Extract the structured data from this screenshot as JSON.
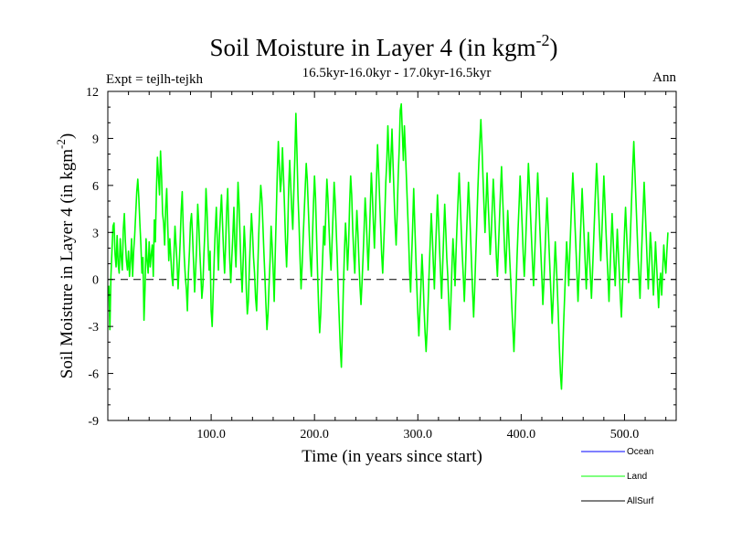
{
  "chart_data": {
    "type": "line",
    "title": "Soil Moisture in Layer 4 (in kgm",
    "title_sup": "-2",
    "title_close": ")",
    "subtitle": "16.5kyr-16.0kyr - 17.0kyr-16.5kyr",
    "expt_label": "Expt = tejlh-tejkh",
    "season_label": "Ann",
    "xlabel": "Time (in years since start)",
    "ylabel": "Soil Moisture in Layer 4 (in kgm",
    "ylabel_sup": "-2",
    "ylabel_close": ")",
    "xlim": [
      0,
      550
    ],
    "ylim": [
      -9,
      12
    ],
    "x_ticks": [
      100,
      200,
      300,
      400,
      500
    ],
    "x_tick_labels": [
      "100.0",
      "200.0",
      "300.0",
      "400.0",
      "500.0"
    ],
    "y_ticks": [
      -9,
      -6,
      -3,
      0,
      3,
      6,
      9,
      12
    ],
    "y_tick_labels": [
      "-9",
      "-6",
      "-3",
      "0",
      "3",
      "6",
      "9",
      "12"
    ],
    "zero_line": "dashed",
    "legend_position": "bottom-right",
    "colors": {
      "ocean": "#0000ff",
      "land": "#00ff00",
      "allsurf": "#000000"
    },
    "series": [
      {
        "name": "Ocean",
        "values": []
      },
      {
        "name": "AllSurf",
        "values": []
      },
      {
        "name": "Land",
        "x_start": 1,
        "x_step": 1,
        "values": [
          -0.4,
          -3.2,
          0.2,
          1.8,
          3.4,
          3.6,
          1.6,
          0.8,
          2.8,
          1.0,
          0.4,
          2.6,
          1.4,
          0.6,
          3.2,
          4.2,
          2.4,
          1.2,
          0.6,
          1.8,
          0.2,
          1.2,
          2.6,
          0.2,
          1.8,
          2.8,
          4.2,
          5.6,
          6.4,
          5.2,
          3.6,
          2.2,
          0.4,
          1.4,
          -2.6,
          -0.6,
          2.6,
          1.2,
          0.4,
          2.4,
          0.8,
          1.6,
          2.2,
          0.2,
          3.8,
          2.4,
          5.6,
          7.8,
          6.6,
          5.4,
          8.2,
          6.6,
          4.2,
          3.6,
          2.2,
          4.6,
          5.8,
          3.4,
          1.2,
          2.6,
          1.4,
          0.2,
          -0.4,
          1.6,
          3.4,
          2.2,
          1.0,
          -0.6,
          0.8,
          2.4,
          4.4,
          5.6,
          3.2,
          1.4,
          0.2,
          -0.6,
          -2.0,
          0.4,
          1.8,
          3.6,
          4.2,
          2.8,
          1.0,
          -0.8,
          0.6,
          2.2,
          4.8,
          3.6,
          1.8,
          0.4,
          -1.2,
          -0.4,
          1.6,
          3.2,
          5.8,
          4.4,
          2.2,
          0.6,
          1.8,
          -2.0,
          -3.0,
          -0.8,
          1.4,
          3.2,
          4.6,
          2.4,
          0.6,
          2.8,
          4.2,
          5.4,
          3.6,
          1.8,
          0.4,
          2.2,
          4.4,
          5.8,
          3.4,
          1.2,
          -0.2,
          1.4,
          2.8,
          4.6,
          2.2,
          0.8,
          3.6,
          6.2,
          4.8,
          2.6,
          0.6,
          -0.8,
          1.2,
          3.4,
          2.0,
          -0.6,
          -2.2,
          -1.4,
          0.8,
          2.6,
          4.2,
          3.0,
          1.4,
          0.4,
          -1.2,
          -2.0,
          0.4,
          2.8,
          4.6,
          6.0,
          5.2,
          3.6,
          1.8,
          0.2,
          -1.6,
          -3.2,
          -2.2,
          -0.4,
          1.2,
          3.4,
          2.2,
          0.6,
          -1.4,
          1.6,
          4.2,
          6.8,
          8.8,
          7.2,
          5.6,
          6.4,
          8.4,
          6.6,
          4.6,
          2.4,
          0.8,
          2.8,
          5.8,
          7.6,
          6.0,
          4.4,
          3.2,
          5.6,
          7.8,
          10.6,
          8.2,
          5.4,
          3.6,
          1.4,
          -0.6,
          0.8,
          2.6,
          4.2,
          5.8,
          7.4,
          6.4,
          4.6,
          2.8,
          1.2,
          0.2,
          2.6,
          4.8,
          6.6,
          5.2,
          2.8,
          0.4,
          -1.8,
          -3.4,
          -2.2,
          -0.2,
          1.6,
          3.4,
          2.2,
          4.4,
          6.4,
          5.2,
          3.4,
          1.8,
          0.6,
          2.4,
          4.2,
          6.2,
          5.0,
          3.2,
          1.4,
          -0.8,
          -2.6,
          -4.4,
          -5.6,
          -3.2,
          -0.4,
          1.8,
          3.6,
          2.4,
          0.6,
          2.2,
          4.8,
          6.6,
          5.4,
          3.2,
          1.6,
          0.4,
          2.6,
          4.4,
          3.0,
          1.2,
          -0.4,
          -1.6,
          -0.2,
          1.4,
          3.2,
          5.2,
          4.0,
          2.2,
          0.6,
          2.4,
          4.6,
          6.8,
          5.4,
          3.6,
          2.0,
          4.2,
          6.4,
          8.6,
          7.0,
          5.2,
          3.4,
          1.6,
          0.4,
          2.2,
          4.0,
          6.2,
          7.6,
          9.8,
          8.0,
          6.2,
          7.8,
          9.6,
          7.4,
          5.4,
          3.6,
          2.2,
          4.2,
          6.6,
          8.4,
          10.8,
          11.2,
          9.4,
          7.6,
          9.8,
          8.2,
          6.4,
          4.6,
          2.8,
          0.6,
          -0.8,
          1.4,
          3.4,
          5.8,
          3.6,
          1.6,
          -0.4,
          -2.2,
          -3.6,
          -2.0,
          -0.4,
          1.6,
          0.2,
          -1.8,
          -3.4,
          -4.6,
          -3.2,
          -1.4,
          0.6,
          2.4,
          4.2,
          2.8,
          1.0,
          -0.6,
          1.6,
          3.4,
          5.4,
          3.8,
          2.0,
          0.4,
          -1.2,
          0.8,
          2.8,
          4.8,
          3.2,
          1.4,
          0.2,
          -1.6,
          -3.2,
          -1.4,
          0.8,
          2.6,
          1.4,
          -0.4,
          1.8,
          3.6,
          5.2,
          6.8,
          5.0,
          3.2,
          1.6,
          0.2,
          -1.4,
          0.4,
          2.6,
          4.4,
          6.2,
          4.6,
          2.8,
          1.0,
          -0.8,
          -2.4,
          -0.6,
          1.4,
          3.4,
          5.6,
          7.4,
          8.8,
          10.2,
          8.6,
          6.6,
          4.8,
          3.0,
          4.8,
          6.8,
          5.0,
          3.4,
          1.6,
          2.8,
          4.6,
          6.4,
          5.0,
          3.2,
          1.4,
          0.2,
          2.0,
          3.8,
          5.6,
          7.2,
          5.4,
          3.6,
          1.8,
          0.4,
          2.2,
          4.4,
          2.8,
          1.2,
          -0.2,
          -1.8,
          -3.2,
          -4.6,
          -2.8,
          -0.8,
          1.4,
          3.2,
          4.8,
          6.6,
          5.0,
          3.4,
          1.6,
          0.2,
          1.8,
          3.6,
          5.4,
          7.4,
          6.0,
          4.2,
          2.6,
          1.0,
          -0.4,
          1.4,
          3.2,
          5.0,
          6.8,
          5.2,
          3.4,
          1.8,
          0.2,
          -1.6,
          -0.2,
          1.6,
          3.4,
          5.2,
          3.6,
          2.0,
          0.4,
          -1.2,
          -2.8,
          -1.2,
          0.6,
          2.4,
          1.0,
          -0.6,
          -2.4,
          -4.4,
          -6.0,
          -7.0,
          -5.2,
          -3.0,
          -1.2,
          0.6,
          2.4,
          1.2,
          -0.4,
          1.6,
          3.4,
          5.2,
          6.8,
          5.4,
          3.6,
          2.0,
          0.4,
          -1.4,
          0.2,
          2.2,
          4.0,
          5.8,
          4.2,
          2.6,
          1.0,
          -0.6,
          1.2,
          3.0,
          1.6,
          0.2,
          -1.2,
          0.4,
          2.2,
          4.0,
          5.8,
          7.4,
          6.0,
          4.4,
          2.8,
          1.2,
          2.8,
          4.6,
          6.6,
          5.0,
          3.2,
          1.6,
          0.2,
          -1.4,
          0.6,
          2.4,
          4.2,
          2.6,
          1.0,
          -0.4,
          1.4,
          3.2,
          1.8,
          0.4,
          -1.2,
          -2.4,
          -0.6,
          1.2,
          3.0,
          4.6,
          3.0,
          1.4,
          -0.2,
          1.6,
          3.4,
          5.4,
          7.2,
          8.8,
          7.0,
          5.2,
          3.4,
          1.6,
          0.2,
          -1.2,
          0.8,
          2.6,
          4.4,
          6.2,
          4.6,
          2.8,
          1.0,
          -0.6,
          1.2,
          3.0,
          2.0,
          0.4,
          -1.0,
          0.6,
          2.4,
          1.0,
          -0.4,
          -1.8,
          -0.2,
          0.4,
          -1.0,
          0.6,
          2.2,
          1.2,
          0.4,
          1.8,
          3.0
        ]
      }
    ]
  },
  "legend": {
    "ocean_label": "Ocean",
    "land_label": "Land",
    "allsurf_label": "AllSurf"
  }
}
